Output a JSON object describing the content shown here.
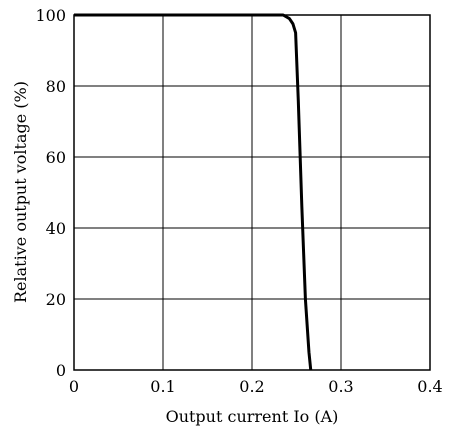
{
  "chart_data": {
    "type": "line",
    "title": "",
    "xlabel": "Output current Io (A)",
    "ylabel": "Relative output voltage (%)",
    "xlim": [
      0,
      0.4
    ],
    "ylim": [
      0,
      100
    ],
    "x_ticks": [
      "0",
      "0.1",
      "0.2",
      "0.3",
      "0.4"
    ],
    "y_ticks": [
      "0",
      "20",
      "40",
      "60",
      "80",
      "100"
    ],
    "grid": true,
    "legend": "none",
    "series": [
      {
        "x": [
          0,
          0.235,
          0.242,
          0.246,
          0.249,
          0.252,
          0.256,
          0.26,
          0.264,
          0.266
        ],
        "y": [
          100,
          100,
          99,
          97.5,
          95,
          76,
          46,
          20,
          5,
          0
        ]
      }
    ]
  }
}
